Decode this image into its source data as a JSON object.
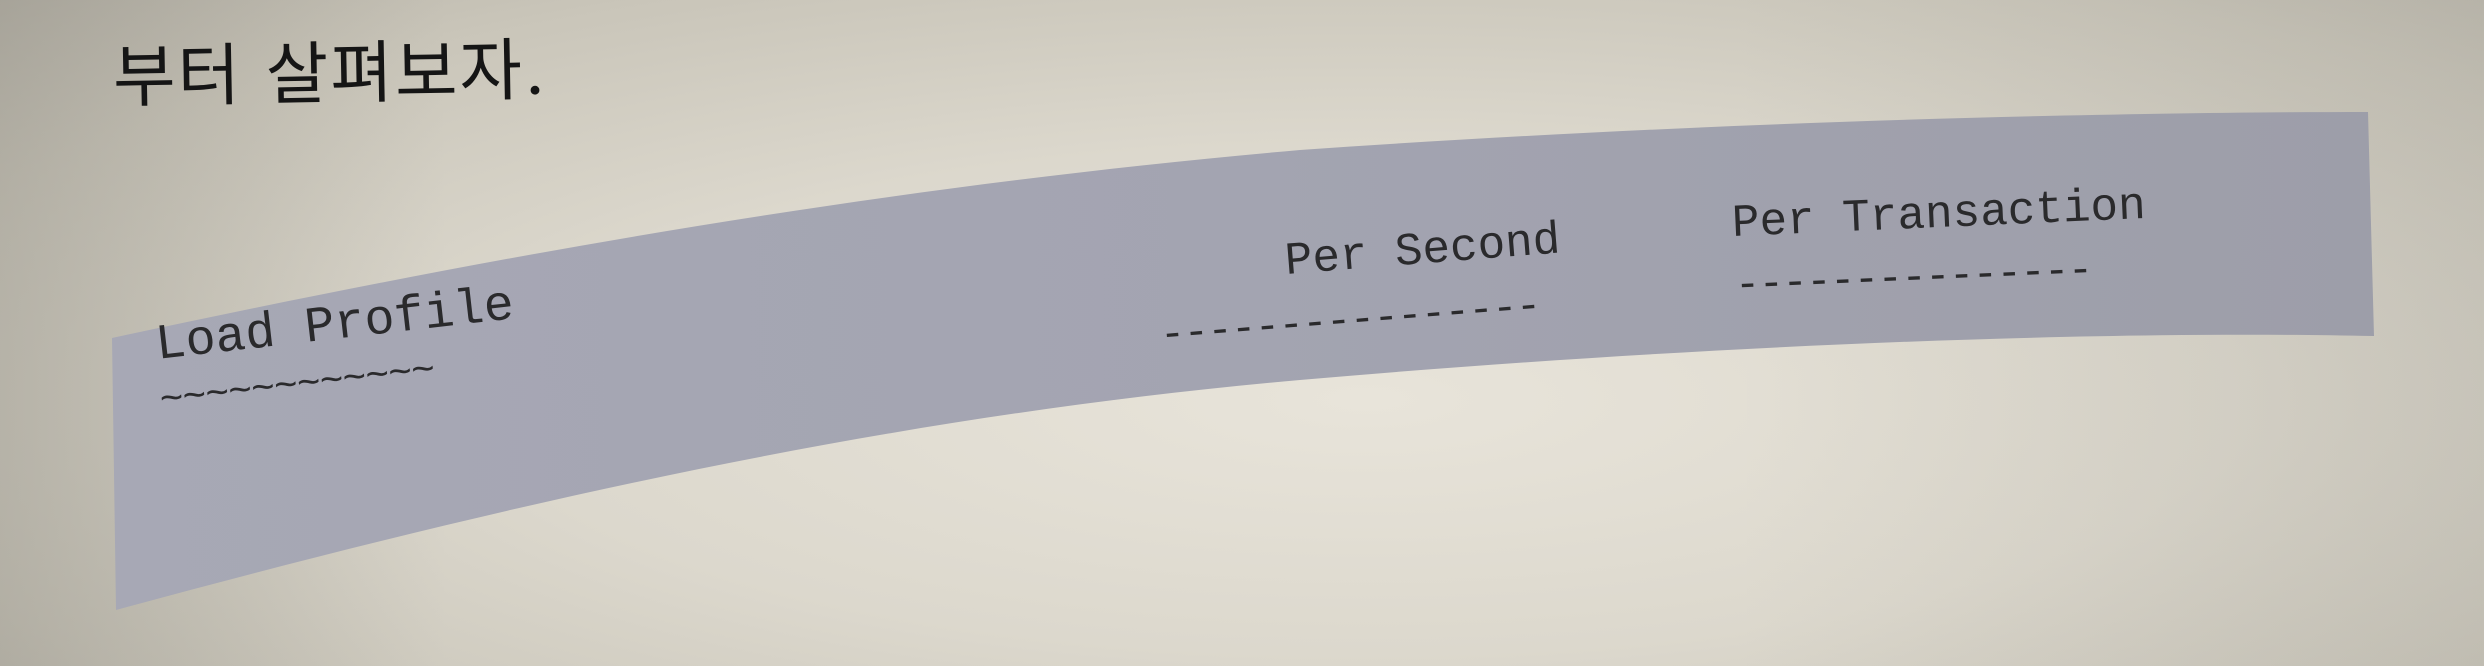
{
  "heading": "부터 살펴보자.",
  "code_block": {
    "load_profile_label": "Load Profile",
    "load_profile_underline": "~~~~~~~~~~~~",
    "per_second_label": "Per Second",
    "per_second_underline": "----------------",
    "per_transaction_label": "Per Transaction",
    "per_transaction_underline": "---------------"
  },
  "colors": {
    "code_background": "#a9aab6",
    "page": "#dcd8cd",
    "text": "#2a2a2c"
  }
}
